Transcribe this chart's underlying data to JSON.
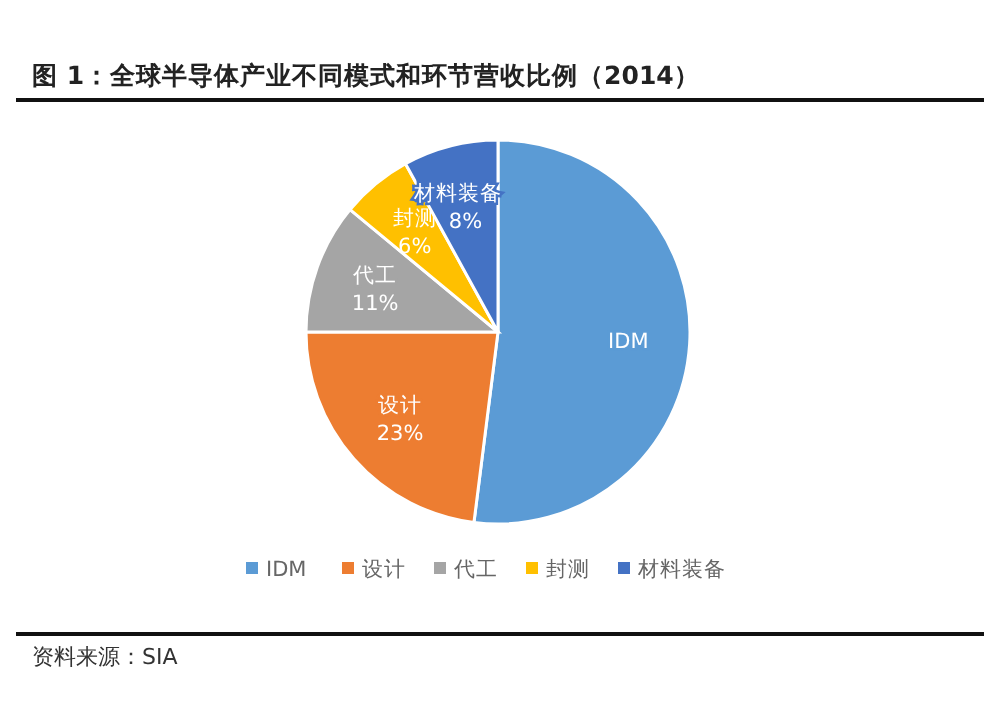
{
  "chart_data": {
    "type": "pie",
    "title": "图 1：全球半导体产业不同模式和环节营收比例（2014）",
    "categories": [
      "IDM",
      "设计",
      "代工",
      "封测",
      "材料装备"
    ],
    "values": [
      52,
      23,
      11,
      6,
      8
    ],
    "colors": [
      "#5b9bd5",
      "#ed7d31",
      "#a5a5a5",
      "#ffc000",
      "#4472c4"
    ],
    "value_labels": [
      null,
      "23%",
      "11%",
      "6%",
      "8%"
    ],
    "legend": "bottom",
    "annotations": [
      "资料来源：SIA"
    ]
  }
}
